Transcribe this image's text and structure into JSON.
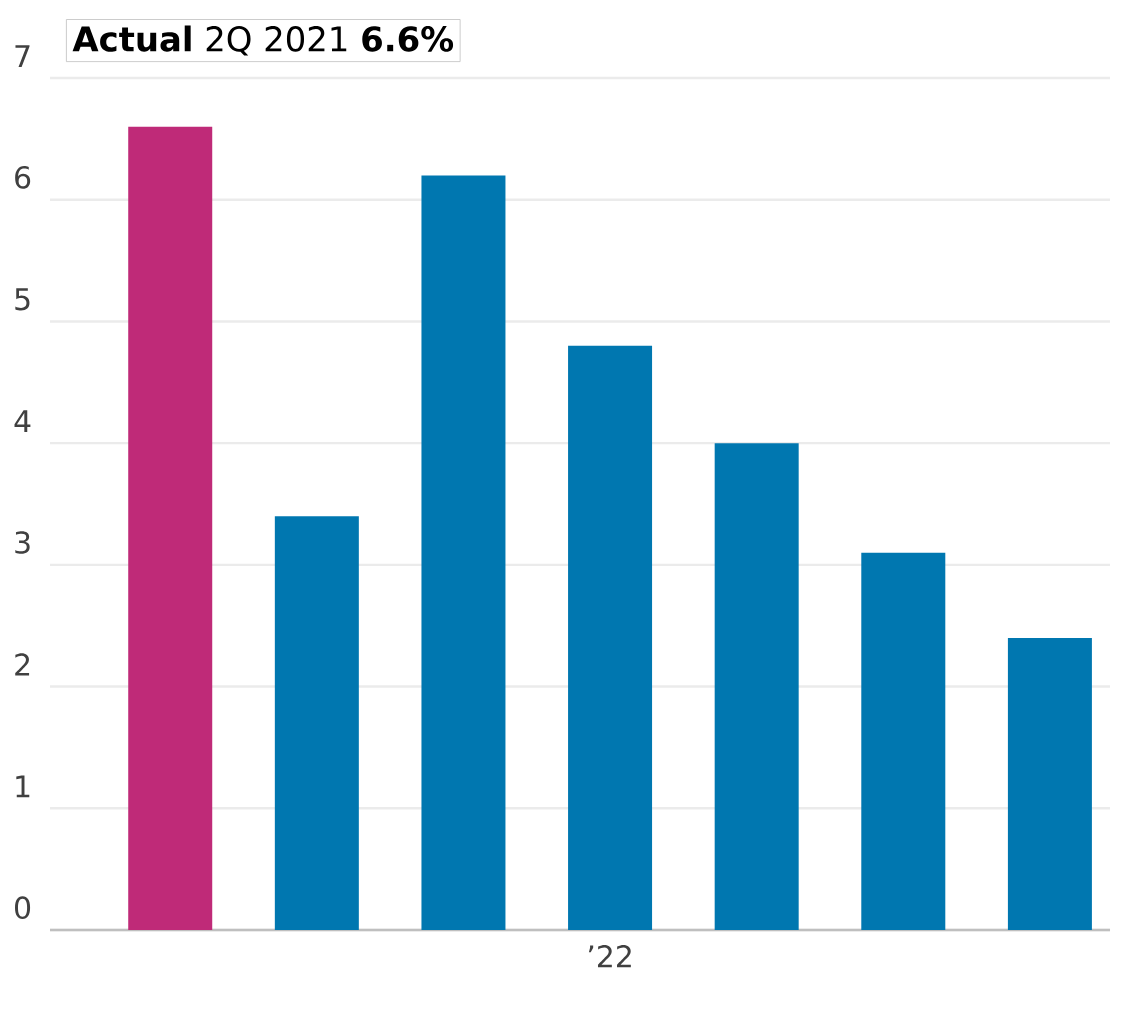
{
  "chart_data": {
    "type": "bar",
    "categories": [
      null,
      null,
      null,
      "’22",
      null,
      null,
      null
    ],
    "values": [
      6.6,
      3.4,
      6.2,
      4.8,
      4.0,
      3.1,
      2.4
    ],
    "colors": [
      "#bf2a78",
      "#0077b0",
      "#0077b0",
      "#0077b0",
      "#0077b0",
      "#0077b0",
      "#0077b0"
    ],
    "ylim": [
      0,
      7
    ],
    "yticks": [
      0,
      1,
      2,
      3,
      4,
      5,
      6,
      7
    ],
    "grid": "y",
    "annotations": [
      "**Actual** 2Q 2021 **6.6%**"
    ]
  }
}
